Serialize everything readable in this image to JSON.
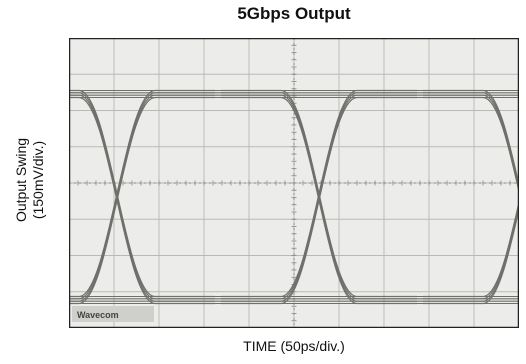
{
  "chart_data": {
    "type": "line",
    "title": "5Gbps Output",
    "xlabel": "TIME (50ps/div.)",
    "ylabel_line1": "Output Swing",
    "ylabel_line2": "(150mV/div.)",
    "x_divisions": 10,
    "y_divisions": 8,
    "grid": true,
    "scope_badge": "Wavecom"
  }
}
